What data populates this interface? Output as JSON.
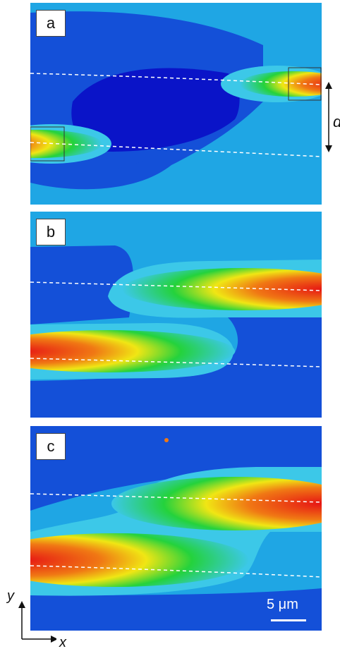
{
  "panels": [
    {
      "label": "a"
    },
    {
      "label": "b"
    },
    {
      "label": "c"
    }
  ],
  "separation_label": "d",
  "scale_bar": {
    "text": "5 μm"
  },
  "axes": {
    "y_label": "y",
    "x_label": "x"
  },
  "colors": {
    "background": "#1fa6e4",
    "outer_field": "#1450d8",
    "low_field": "#0a14c8",
    "mode_edge": "#3cc8e8",
    "mode_green": "#24d23c",
    "mode_yellow": "#f0e614",
    "mode_orange": "#f07814",
    "mode_core": "#e61414"
  }
}
